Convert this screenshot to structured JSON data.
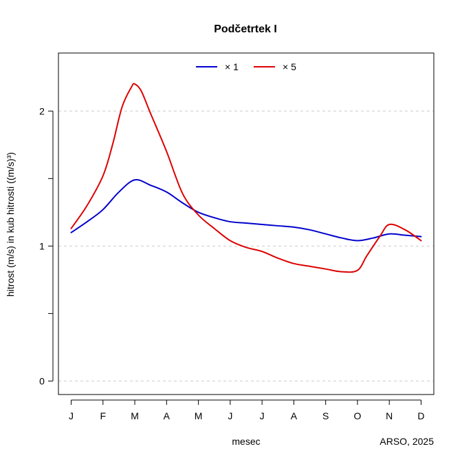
{
  "chart_data": {
    "type": "line",
    "title": "Podčetrtek I",
    "xlabel": "mesec",
    "ylabel": "hitrost (m/s) in kub hitrosti ((m/s)³)",
    "credit": "ARSO, 2025",
    "categories": [
      "J",
      "F",
      "M",
      "A",
      "M",
      "J",
      "J",
      "A",
      "S",
      "O",
      "N",
      "D"
    ],
    "y_ticks": [
      0,
      1,
      2
    ],
    "ylim": [
      -0.1,
      2.43
    ],
    "grid": "horizontal dashed at y ticks",
    "legend_position": "top-center",
    "series": [
      {
        "name": "× 1",
        "color": "#0000CD",
        "x": [
          1,
          1.5,
          2,
          2.5,
          3,
          3.5,
          4,
          4.5,
          5,
          5.5,
          6,
          6.5,
          7,
          7.5,
          8,
          8.5,
          9,
          9.5,
          10,
          10.5,
          11,
          11.5,
          12
        ],
        "values": [
          1.1,
          1.18,
          1.27,
          1.4,
          1.49,
          1.45,
          1.4,
          1.32,
          1.25,
          1.21,
          1.18,
          1.17,
          1.16,
          1.15,
          1.14,
          1.12,
          1.09,
          1.06,
          1.04,
          1.06,
          1.09,
          1.08,
          1.07
        ]
      },
      {
        "name": "× 5",
        "color": "#DD0000",
        "x": [
          1,
          1.5,
          2,
          2.3,
          2.6,
          2.9,
          3,
          3.2,
          3.5,
          4,
          4.5,
          5,
          5.5,
          6,
          6.5,
          7,
          7.5,
          8,
          8.5,
          9,
          9.5,
          10,
          10.3,
          10.7,
          11,
          11.5,
          12
        ],
        "values": [
          1.13,
          1.3,
          1.52,
          1.75,
          2.03,
          2.18,
          2.2,
          2.15,
          1.98,
          1.7,
          1.39,
          1.23,
          1.13,
          1.04,
          0.99,
          0.96,
          0.91,
          0.87,
          0.85,
          0.83,
          0.81,
          0.82,
          0.93,
          1.07,
          1.16,
          1.12,
          1.04
        ]
      }
    ]
  }
}
